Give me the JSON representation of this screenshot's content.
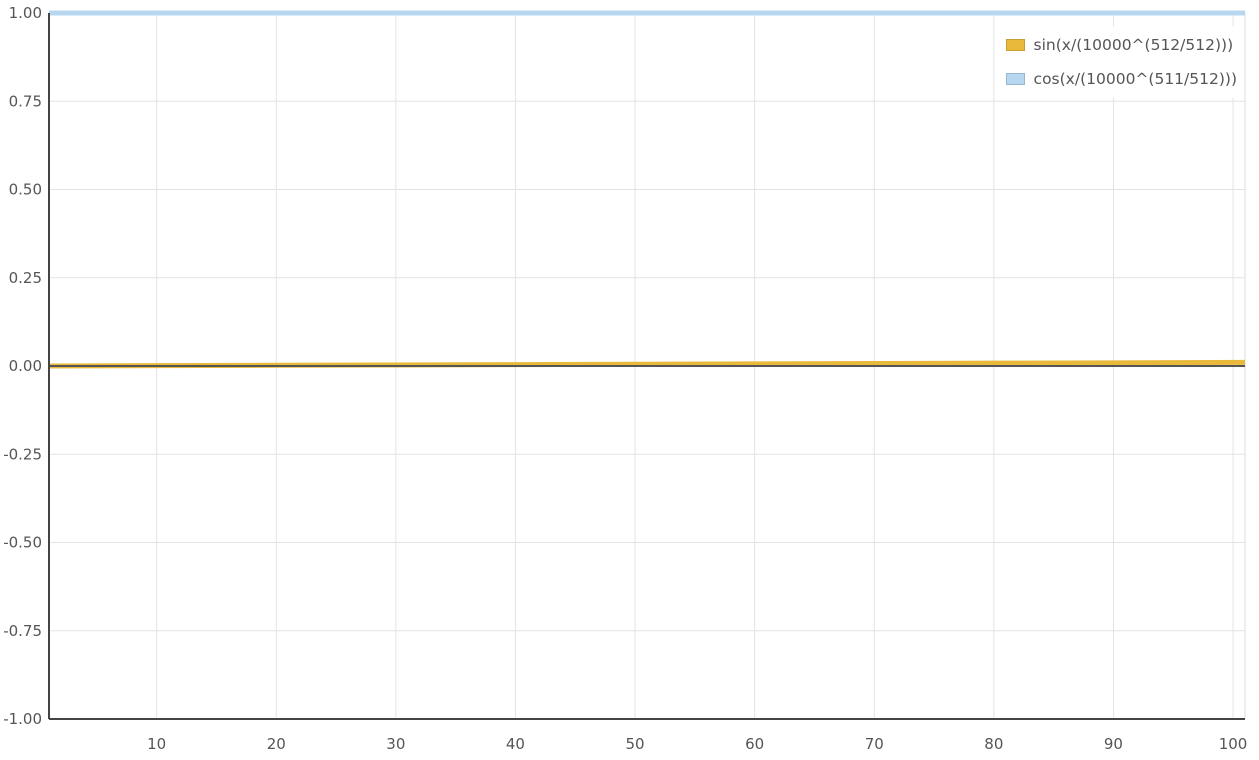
{
  "chart_data": {
    "type": "line",
    "title": "",
    "xlabel": "",
    "ylabel": "",
    "xlim": [
      1,
      101
    ],
    "ylim": [
      -1.0,
      1.0
    ],
    "x_ticks": [
      10,
      20,
      30,
      40,
      50,
      60,
      70,
      80,
      90,
      100
    ],
    "y_ticks": [
      1.0,
      0.75,
      0.5,
      0.25,
      0.0,
      -0.25,
      -0.5,
      -0.75,
      -1.0
    ],
    "y_tick_labels": [
      "1.00",
      "0.75",
      "0.50",
      "0.25",
      "0.00",
      "-0.25",
      "-0.50",
      "-0.75",
      "-1.00"
    ],
    "x_tick_labels": [
      "10",
      "20",
      "30",
      "40",
      "50",
      "60",
      "70",
      "80",
      "90",
      "100"
    ],
    "grid": true,
    "legend_position": "top-right",
    "series": [
      {
        "name": "sin(x/(10000^(512/512)))",
        "color": "#e8b93a",
        "x": [
          1,
          10,
          20,
          30,
          40,
          50,
          60,
          70,
          80,
          90,
          101
        ],
        "y": [
          0.0001,
          0.001,
          0.002,
          0.003,
          0.004,
          0.005,
          0.006,
          0.007,
          0.008,
          0.009,
          0.0101
        ]
      },
      {
        "name": "cos(x/(10000^(511/512)))",
        "color": "#b7d7f0",
        "x": [
          1,
          10,
          20,
          30,
          40,
          50,
          60,
          70,
          80,
          90,
          101
        ],
        "y": [
          1.0,
          1.0,
          1.0,
          1.0,
          1.0,
          1.0,
          1.0,
          1.0,
          1.0,
          1.0,
          0.99995
        ]
      }
    ]
  }
}
